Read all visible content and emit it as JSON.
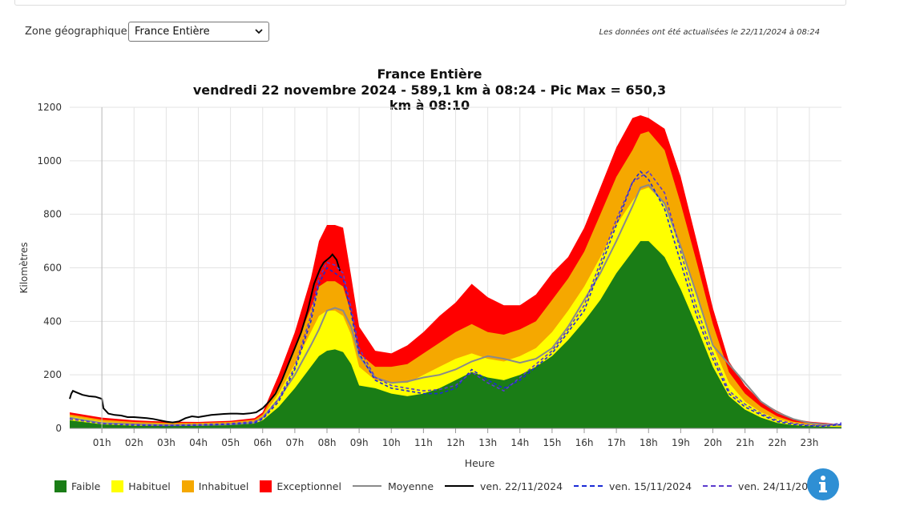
{
  "header": {
    "zone_label": "Zone géographique :",
    "zone_value": "France Entière",
    "updated_text": "Les données ont été actualisées le 22/11/2024 à 08:24"
  },
  "info_icon": "info-icon",
  "chart_data": {
    "type": "area",
    "title": "France Entière",
    "subtitle": "vendredi 22 novembre 2024 - 589,1 km à 08:24 - Pic Max = 650,3 km à 08:10",
    "xlabel": "Heure",
    "ylabel": "Kilomètres",
    "ylim": [
      0,
      1200
    ],
    "yticks": [
      0,
      200,
      400,
      600,
      800,
      1000,
      1200
    ],
    "xlim": [
      0,
      24
    ],
    "xticks": [
      1,
      2,
      3,
      4,
      5,
      6,
      7,
      8,
      9,
      10,
      11,
      12,
      13,
      14,
      15,
      16,
      17,
      18,
      19,
      20,
      21,
      22,
      23
    ],
    "xtick_labels": [
      "01h",
      "02h",
      "03h",
      "04h",
      "05h",
      "06h",
      "07h",
      "08h",
      "09h",
      "10h",
      "11h",
      "12h",
      "13h",
      "14h",
      "15h",
      "16h",
      "17h",
      "18h",
      "19h",
      "20h",
      "21h",
      "22h",
      "23h"
    ],
    "grid": true,
    "legend_position": "bottom",
    "x": [
      0,
      1,
      2,
      3,
      4,
      5,
      5.75,
      6,
      6.5,
      7,
      7.5,
      7.75,
      8,
      8.25,
      8.5,
      8.75,
      9,
      9.5,
      10,
      10.5,
      11,
      11.5,
      12,
      12.5,
      13,
      13.5,
      14,
      14.5,
      15,
      15.5,
      16,
      16.5,
      17,
      17.5,
      17.75,
      18,
      18.5,
      19,
      19.5,
      20,
      20.5,
      21,
      21.5,
      22,
      22.5,
      23,
      23.5,
      24
    ],
    "bands": [
      {
        "name": "Faible",
        "color": "#1a7d16",
        "values": [
          30,
          15,
          10,
          10,
          10,
          12,
          18,
          30,
          80,
          150,
          230,
          270,
          290,
          295,
          285,
          240,
          160,
          150,
          130,
          120,
          130,
          150,
          180,
          210,
          190,
          180,
          200,
          230,
          270,
          330,
          400,
          480,
          580,
          660,
          700,
          700,
          640,
          520,
          380,
          230,
          120,
          70,
          40,
          20,
          12,
          8,
          6,
          5
        ]
      },
      {
        "name": "Habituel",
        "color": "#ffff00",
        "values": [
          45,
          25,
          18,
          15,
          15,
          18,
          25,
          45,
          130,
          240,
          360,
          420,
          440,
          440,
          420,
          350,
          230,
          180,
          170,
          170,
          200,
          230,
          260,
          280,
          260,
          250,
          270,
          300,
          360,
          440,
          530,
          640,
          760,
          850,
          890,
          900,
          840,
          680,
          500,
          310,
          170,
          100,
          60,
          35,
          20,
          14,
          10,
          8
        ]
      },
      {
        "name": "Inhabituel",
        "color": "#f5a800",
        "values": [
          52,
          32,
          24,
          20,
          20,
          24,
          32,
          52,
          160,
          300,
          450,
          530,
          550,
          550,
          530,
          430,
          280,
          230,
          230,
          240,
          280,
          320,
          360,
          390,
          360,
          350,
          370,
          400,
          480,
          560,
          660,
          800,
          940,
          1040,
          1100,
          1110,
          1040,
          840,
          620,
          390,
          210,
          130,
          80,
          45,
          25,
          18,
          14,
          10
        ]
      },
      {
        "name": "Exceptionnel",
        "color": "#ff0000",
        "values": [
          60,
          40,
          30,
          25,
          24,
          28,
          38,
          60,
          200,
          360,
          560,
          700,
          760,
          760,
          750,
          570,
          380,
          290,
          280,
          310,
          360,
          420,
          470,
          540,
          490,
          460,
          460,
          500,
          580,
          640,
          750,
          900,
          1050,
          1160,
          1170,
          1160,
          1120,
          940,
          700,
          450,
          250,
          160,
          100,
          65,
          35,
          25,
          20,
          14
        ]
      }
    ],
    "series": [
      {
        "name": "Moyenne",
        "color": "#8a8a8a",
        "dash": "solid",
        "x": [
          0,
          1,
          2,
          3,
          4,
          5,
          5.75,
          6,
          6.5,
          7,
          7.5,
          7.75,
          8,
          8.25,
          8.5,
          8.75,
          9,
          9.5,
          10,
          10.5,
          11,
          11.5,
          12,
          12.5,
          13,
          13.5,
          14,
          14.5,
          15,
          15.5,
          16,
          16.5,
          17,
          17.5,
          17.75,
          18,
          18.5,
          19,
          19.5,
          20,
          20.5,
          21,
          21.5,
          22,
          22.5,
          23,
          23.5,
          24
        ],
        "values": [
          40,
          20,
          15,
          12,
          12,
          15,
          22,
          40,
          110,
          200,
          310,
          370,
          440,
          450,
          440,
          380,
          270,
          190,
          170,
          175,
          190,
          200,
          220,
          250,
          270,
          260,
          245,
          260,
          300,
          380,
          480,
          580,
          700,
          830,
          900,
          910,
          840,
          680,
          500,
          310,
          240,
          170,
          100,
          60,
          35,
          20,
          15,
          12
        ]
      },
      {
        "name": "ven. 22/11/2024",
        "color": "#000000",
        "dash": "solid",
        "x": [
          0,
          0.05,
          0.1,
          0.2,
          0.4,
          0.6,
          0.8,
          1.0,
          1.05,
          1.2,
          1.4,
          1.6,
          1.8,
          2.0,
          2.2,
          2.4,
          2.6,
          2.8,
          3.0,
          3.2,
          3.4,
          3.6,
          3.8,
          4.0,
          4.2,
          4.4,
          4.6,
          4.8,
          5.0,
          5.2,
          5.4,
          5.6,
          5.8,
          6.0,
          6.2,
          6.4,
          6.6,
          6.8,
          7.0,
          7.2,
          7.4,
          7.6,
          7.8,
          7.9,
          8.0,
          8.1,
          8.17,
          8.3,
          8.4
        ],
        "values": [
          110,
          130,
          140,
          135,
          125,
          120,
          118,
          110,
          75,
          55,
          50,
          48,
          42,
          42,
          40,
          38,
          35,
          30,
          25,
          22,
          26,
          38,
          45,
          42,
          46,
          50,
          52,
          54,
          55,
          55,
          54,
          56,
          60,
          75,
          100,
          130,
          180,
          240,
          300,
          360,
          440,
          540,
          600,
          620,
          630,
          640,
          650,
          630,
          589
        ]
      },
      {
        "name": "ven. 15/11/2024",
        "color": "#1a2ad6",
        "dash": "dashed",
        "x": [
          0,
          1,
          2,
          3,
          4,
          5,
          5.75,
          6,
          6.5,
          7,
          7.5,
          7.75,
          8,
          8.25,
          8.5,
          8.75,
          9,
          9.5,
          10,
          10.5,
          11,
          11.5,
          12,
          12.5,
          13,
          13.5,
          14,
          14.5,
          15,
          15.5,
          16,
          16.5,
          17,
          17.5,
          17.75,
          18,
          18.5,
          19,
          19.5,
          20,
          20.5,
          21,
          21.5,
          22,
          22.5,
          23,
          23.5,
          24
        ],
        "values": [
          35,
          18,
          12,
          10,
          12,
          15,
          20,
          35,
          100,
          220,
          400,
          540,
          600,
          580,
          560,
          430,
          280,
          180,
          150,
          140,
          130,
          130,
          150,
          220,
          180,
          150,
          180,
          230,
          280,
          360,
          440,
          600,
          760,
          920,
          960,
          930,
          820,
          620,
          420,
          260,
          130,
          80,
          50,
          25,
          15,
          10,
          8,
          15
        ]
      },
      {
        "name": "ven. 24/11/2023",
        "color": "#5a3acd",
        "dash": "dashed",
        "x": [
          0,
          1,
          2,
          3,
          4,
          5,
          5.75,
          6,
          6.5,
          7,
          7.5,
          7.75,
          8,
          8.25,
          8.5,
          8.75,
          9,
          9.5,
          10,
          10.5,
          11,
          11.5,
          12,
          12.5,
          13,
          13.5,
          14,
          14.5,
          15,
          15.5,
          16,
          16.5,
          17,
          17.5,
          17.75,
          18,
          18.5,
          19,
          19.5,
          20,
          20.5,
          21,
          21.5,
          22,
          22.5,
          23,
          23.5,
          24
        ],
        "values": [
          35,
          18,
          14,
          12,
          14,
          18,
          25,
          40,
          110,
          230,
          420,
          560,
          620,
          610,
          580,
          450,
          300,
          190,
          160,
          150,
          140,
          145,
          160,
          210,
          170,
          140,
          190,
          240,
          290,
          370,
          460,
          620,
          780,
          920,
          940,
          960,
          880,
          660,
          450,
          280,
          140,
          90,
          55,
          30,
          18,
          12,
          10,
          20
        ]
      }
    ],
    "legend": [
      {
        "label": "Faible",
        "kind": "swatch",
        "color": "#1a7d16"
      },
      {
        "label": "Habituel",
        "kind": "swatch",
        "color": "#ffff00"
      },
      {
        "label": "Inhabituel",
        "kind": "swatch",
        "color": "#f5a800"
      },
      {
        "label": "Exceptionnel",
        "kind": "swatch",
        "color": "#ff0000"
      },
      {
        "label": "Moyenne",
        "kind": "line",
        "color": "#8a8a8a",
        "dash": "solid"
      },
      {
        "label": "ven. 22/11/2024",
        "kind": "line",
        "color": "#000000",
        "dash": "solid"
      },
      {
        "label": "ven. 15/11/2024",
        "kind": "line",
        "color": "#1a2ad6",
        "dash": "dashed"
      },
      {
        "label": "ven. 24/11/2023",
        "kind": "line",
        "color": "#5a3acd",
        "dash": "dashed"
      }
    ]
  }
}
